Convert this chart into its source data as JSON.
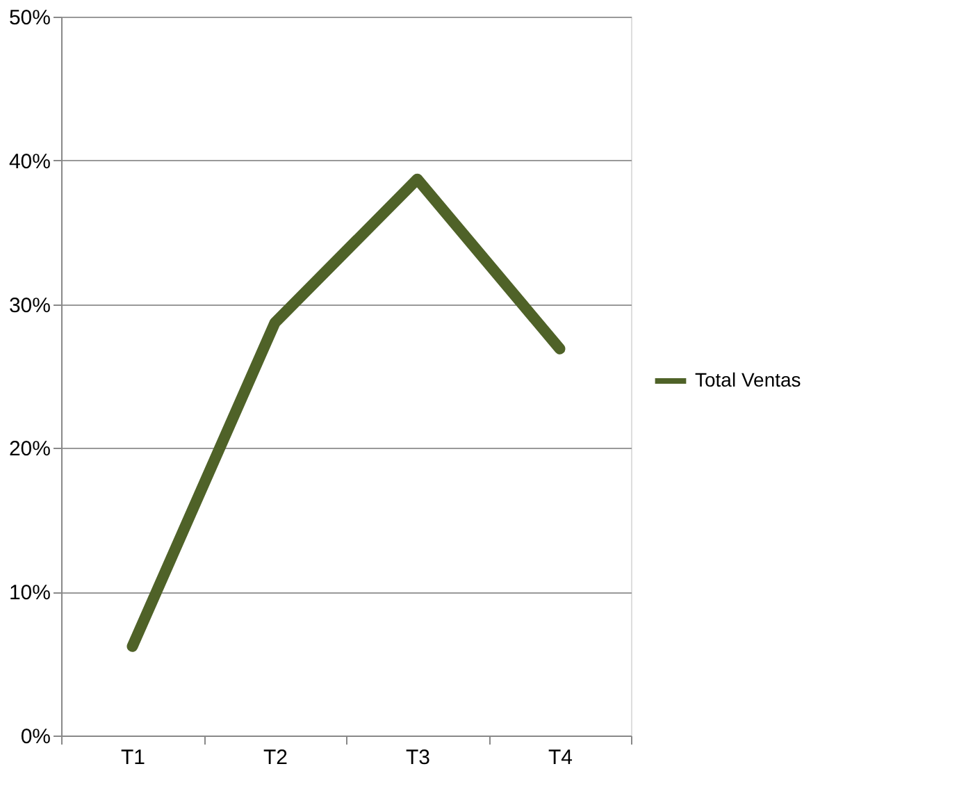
{
  "chart_data": {
    "type": "line",
    "categories": [
      "T1",
      "T2",
      "T3",
      "T4"
    ],
    "series": [
      {
        "name": "Total Ventas",
        "color": "#4f6228",
        "values": [
          6.2,
          28.7,
          38.7,
          26.9
        ]
      }
    ],
    "ylim": [
      0,
      50
    ],
    "yticks": [
      {
        "value": 0,
        "label": "0%"
      },
      {
        "value": 10,
        "label": "10%"
      },
      {
        "value": 20,
        "label": "20%"
      },
      {
        "value": 30,
        "label": "30%"
      },
      {
        "value": 40,
        "label": "40%"
      },
      {
        "value": 50,
        "label": "50%"
      }
    ],
    "grid": "y",
    "legend": "right",
    "marker": "none",
    "line_style": "solid"
  }
}
